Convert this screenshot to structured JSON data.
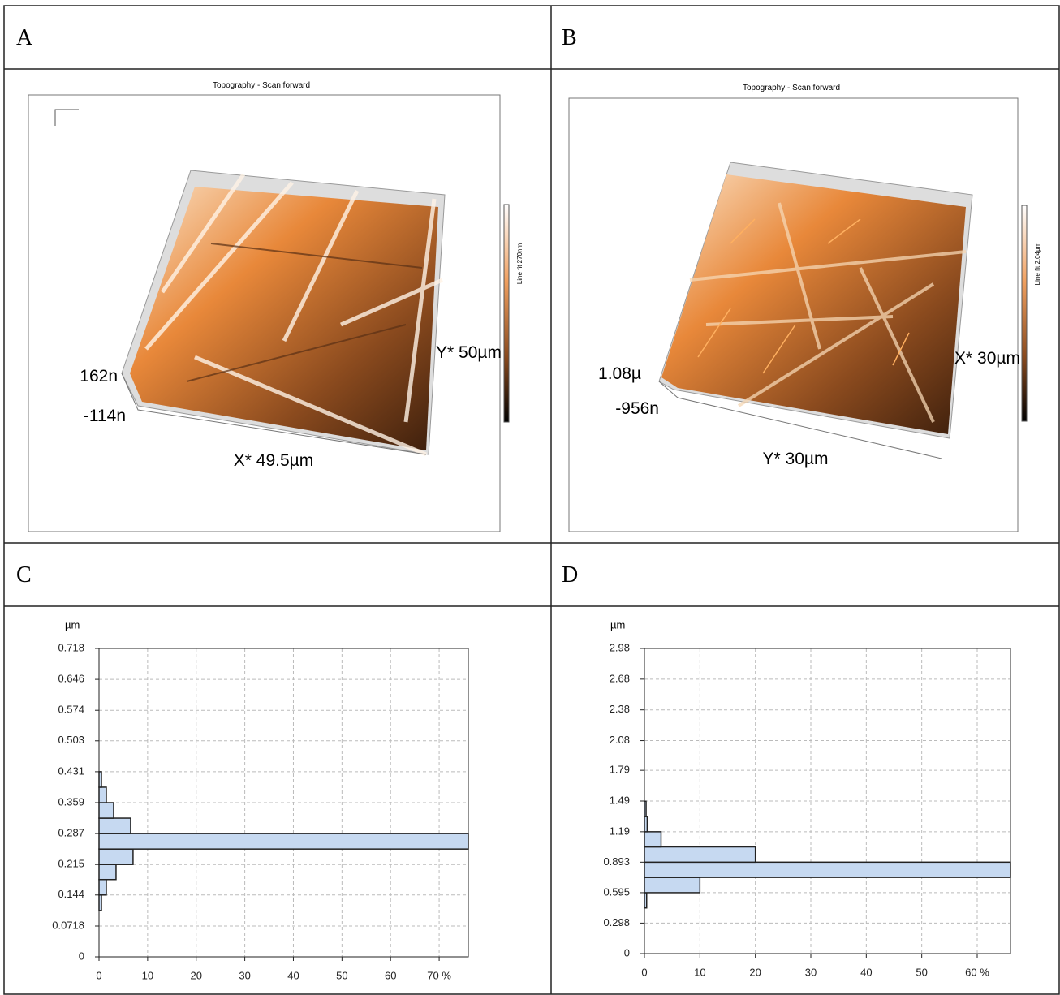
{
  "panels": [
    {
      "label": "A"
    },
    {
      "label": "B"
    },
    {
      "label": "C"
    },
    {
      "label": "D"
    }
  ],
  "images": [
    {
      "title": "Topography - Scan forward",
      "z_max": "162n",
      "z_min": "-114n",
      "x_axis": "X* 49.5µm",
      "y_axis": "Y* 50µm",
      "colorbar": "Line fit 270nm"
    },
    {
      "title": "Topography - Scan forward",
      "z_max": "1.08µ",
      "z_min": "-956n",
      "x_axis": "Y* 30µm",
      "y_axis": "X* 30µm",
      "colorbar": "Line fit 2.04µm"
    }
  ],
  "chart_data": [
    {
      "type": "histogram",
      "orientation": "horizontal",
      "y_label": "µm",
      "color": "#c6d9f1",
      "bins": [
        0.108,
        0.144,
        0.18,
        0.215,
        0.251,
        0.287,
        0.323,
        0.359,
        0.395,
        0.431
      ],
      "values": [
        0.5,
        1.5,
        3.5,
        7,
        76,
        6.5,
        3,
        1.5,
        0.5
      ],
      "ylim": [
        0,
        0.718
      ],
      "yticks": [
        0,
        0.0718,
        0.144,
        0.215,
        0.287,
        0.359,
        0.431,
        0.503,
        0.574,
        0.646,
        0.718
      ],
      "xlim": [
        0,
        76
      ],
      "xticks": [
        0,
        10,
        20,
        30,
        40,
        50,
        60,
        {
          "value": 70,
          "label": "70 %"
        }
      ],
      "grid": true
    },
    {
      "type": "histogram",
      "orientation": "horizontal",
      "y_label": "µm",
      "color": "#c6d9f1",
      "bins": [
        0.446,
        0.595,
        0.744,
        0.893,
        1.042,
        1.19,
        1.339,
        1.488
      ],
      "values": [
        0.4,
        10,
        66,
        20,
        3,
        0.5,
        0.3
      ],
      "ylim": [
        0,
        2.98
      ],
      "yticks": [
        0,
        0.298,
        0.595,
        0.893,
        1.19,
        1.49,
        1.79,
        2.08,
        2.38,
        2.68,
        2.98
      ],
      "xlim": [
        0,
        66
      ],
      "xticks": [
        0,
        10,
        20,
        30,
        40,
        50,
        {
          "value": 60,
          "label": "60 %"
        }
      ],
      "grid": true
    }
  ]
}
